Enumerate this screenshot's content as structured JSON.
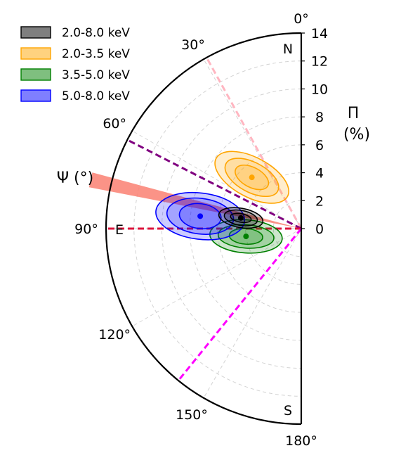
{
  "chart_data": {
    "type": "polar-half",
    "title": "",
    "radial_axis": {
      "label_line1": "Π",
      "label_line2": "(%)",
      "range": [
        0,
        14
      ],
      "ticks": [
        0,
        2,
        4,
        6,
        8,
        10,
        12,
        14
      ],
      "tick_labels": [
        "0",
        "2",
        "4",
        "6",
        "8",
        "10",
        "12",
        "14"
      ]
    },
    "angular_axis": {
      "label": "Ψ (°)",
      "range_deg": [
        0,
        180
      ],
      "direction": "counter-clockwise from north through east",
      "ticks": [
        0,
        30,
        60,
        90,
        120,
        150,
        180
      ],
      "tick_labels": [
        "0°",
        "30°",
        "60°",
        "90°",
        "120°",
        "150°",
        "180°"
      ]
    },
    "direction_labels": {
      "north": "N",
      "east": "E",
      "south": "S"
    },
    "grid": true,
    "legend": {
      "placement": "top-left",
      "entries": [
        {
          "label": "2.0-8.0 keV",
          "color": "#000000"
        },
        {
          "label": "2.0-3.5 keV",
          "color": "#ffa500"
        },
        {
          "label": "3.5-5.0 keV",
          "color": "#008000"
        },
        {
          "label": "5.0-8.0 keV",
          "color": "#0000ff"
        }
      ]
    },
    "reference_lines": [
      {
        "angle_deg": 29,
        "color": "#ffb6c1"
      },
      {
        "angle_deg": 63,
        "color": "#800080"
      },
      {
        "angle_deg": 90,
        "color": "#dc143c"
      },
      {
        "angle_deg": 141,
        "color": "#ff00ff"
      }
    ],
    "shaded_band": {
      "angle_deg": [
        75,
        79
      ],
      "color": "#fa8072"
    },
    "series": [
      {
        "name": "2.0-8.0 keV",
        "color": "#000000",
        "best_fit": {
          "pol_deg": 4.4,
          "angle_deg": 80
        },
        "contours": [
          {
            "radial_halfwidth": 0.75,
            "angular_halfwidth_deg": 4,
            "tilt_deg": 0
          },
          {
            "radial_halfwidth": 1.2,
            "angular_halfwidth_deg": 7,
            "tilt_deg": 0
          },
          {
            "radial_halfwidth": 1.6,
            "angular_halfwidth_deg": 9,
            "tilt_deg": 0
          }
        ]
      },
      {
        "name": "2.0-3.5 keV",
        "color": "#ffa500",
        "best_fit": {
          "pol_deg": 5.1,
          "angle_deg": 44
        },
        "contours": [
          {
            "radial_halfwidth": 1.3,
            "angular_halfwidth_deg": 8,
            "tilt_deg": -18
          },
          {
            "radial_halfwidth": 2.1,
            "angular_halfwidth_deg": 12,
            "tilt_deg": -18
          },
          {
            "radial_halfwidth": 2.9,
            "angular_halfwidth_deg": 16,
            "tilt_deg": -18
          }
        ]
      },
      {
        "name": "3.5-5.0 keV",
        "color": "#008000",
        "best_fit": {
          "pol_deg": 4.0,
          "angle_deg": 98
        },
        "contours": [
          {
            "radial_halfwidth": 1.2,
            "angular_halfwidth_deg": 8,
            "tilt_deg": 12
          },
          {
            "radial_halfwidth": 2.0,
            "angular_halfwidth_deg": 12,
            "tilt_deg": 12
          },
          {
            "radial_halfwidth": 2.6,
            "angular_halfwidth_deg": 17,
            "tilt_deg": 12
          }
        ]
      },
      {
        "name": "5.0-8.0 keV",
        "color": "#0000ff",
        "best_fit": {
          "pol_deg": 7.3,
          "angle_deg": 83
        },
        "contours": [
          {
            "radial_halfwidth": 1.5,
            "angular_halfwidth_deg": 7,
            "tilt_deg": 0
          },
          {
            "radial_halfwidth": 2.4,
            "angular_halfwidth_deg": 10,
            "tilt_deg": 0
          },
          {
            "radial_halfwidth": 3.2,
            "angular_halfwidth_deg": 13,
            "tilt_deg": 0
          }
        ]
      }
    ]
  }
}
